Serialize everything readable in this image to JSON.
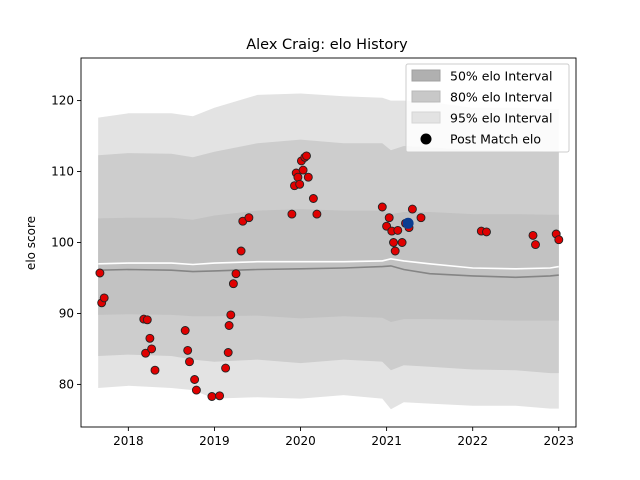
{
  "chart_data": {
    "type": "scatter",
    "title": "Alex Craig: elo History",
    "xlabel": "",
    "ylabel": "elo score",
    "xlim": [
      2017.45,
      2023.2
    ],
    "ylim": [
      74,
      126
    ],
    "x_ticks": [
      2018,
      2019,
      2020,
      2021,
      2022,
      2023
    ],
    "x_tick_labels": [
      "2018",
      "2019",
      "2020",
      "2021",
      "2022",
      "2023"
    ],
    "y_ticks": [
      80,
      90,
      100,
      110,
      120
    ],
    "y_tick_labels": [
      "80",
      "90",
      "100",
      "110",
      "120"
    ],
    "grid": false,
    "legend_position": "top-right",
    "legend": [
      {
        "label": "50% elo Interval",
        "kind": "band",
        "color": "#b0b0b0"
      },
      {
        "label": "80% elo Interval",
        "kind": "band",
        "color": "#c8c8c8"
      },
      {
        "label": "95% elo Interval",
        "kind": "band",
        "color": "#e3e3e3"
      },
      {
        "label": "Post Match elo",
        "kind": "marker",
        "color": "#000000"
      }
    ],
    "bands": {
      "x": [
        2017.65,
        2018.0,
        2018.5,
        2018.75,
        2019.0,
        2019.5,
        2020.0,
        2020.5,
        2020.95,
        2021.05,
        2021.2,
        2021.5,
        2022.0,
        2022.5,
        2022.9,
        2023.0
      ],
      "p95": {
        "lower": [
          79.5,
          79.8,
          79.5,
          79.2,
          78.0,
          78.2,
          78.0,
          78.5,
          78.0,
          76.5,
          77.5,
          77.3,
          77.0,
          77.0,
          76.6,
          76.6
        ],
        "upper": [
          117.6,
          118.2,
          118.2,
          117.8,
          119.0,
          120.8,
          121.0,
          120.6,
          120.4,
          120.0,
          120.0,
          119.8,
          119.0,
          119.0,
          118.8,
          118.8
        ]
      },
      "p80": {
        "lower": [
          84.0,
          84.2,
          84.0,
          83.5,
          83.2,
          83.5,
          83.0,
          83.5,
          83.2,
          82.0,
          82.7,
          82.5,
          82.1,
          82.0,
          81.6,
          81.6
        ],
        "upper": [
          112.3,
          112.6,
          112.5,
          112.0,
          112.8,
          114.0,
          114.5,
          114.0,
          114.0,
          113.0,
          113.6,
          113.4,
          113.0,
          113.0,
          112.8,
          112.8
        ]
      },
      "p50": {
        "lower": [
          89.8,
          89.9,
          89.8,
          89.6,
          89.6,
          89.7,
          89.3,
          89.6,
          89.4,
          88.8,
          89.2,
          89.2,
          89.1,
          89.0,
          89.0,
          89.0
        ],
        "upper": [
          103.4,
          103.5,
          103.5,
          103.2,
          103.8,
          104.5,
          104.7,
          104.5,
          104.5,
          104.0,
          104.3,
          104.3,
          104.0,
          104.0,
          103.9,
          103.9
        ]
      }
    },
    "median_line": {
      "x": [
        2017.65,
        2018.0,
        2018.5,
        2018.75,
        2019.0,
        2019.5,
        2020.0,
        2020.5,
        2020.95,
        2021.05,
        2021.2,
        2021.5,
        2022.0,
        2022.5,
        2022.9,
        2023.0
      ],
      "y": [
        97.0,
        97.1,
        97.1,
        96.9,
        97.1,
        97.3,
        97.3,
        97.3,
        97.4,
        97.7,
        97.4,
        97.0,
        96.4,
        96.3,
        96.4,
        96.6
      ]
    },
    "lower_line": {
      "x": [
        2017.65,
        2018.0,
        2018.5,
        2018.75,
        2019.0,
        2019.5,
        2020.0,
        2020.5,
        2020.95,
        2021.05,
        2021.2,
        2021.5,
        2022.0,
        2022.5,
        2022.9,
        2023.0
      ],
      "y": [
        96.1,
        96.2,
        96.1,
        95.9,
        96.0,
        96.2,
        96.3,
        96.4,
        96.6,
        96.7,
        96.2,
        95.6,
        95.3,
        95.1,
        95.3,
        95.4
      ]
    },
    "points": {
      "x": [
        2017.67,
        2017.69,
        2017.72,
        2018.18,
        2018.22,
        2018.2,
        2018.25,
        2018.27,
        2018.31,
        2018.66,
        2018.69,
        2018.71,
        2018.77,
        2018.79,
        2018.97,
        2019.06,
        2019.13,
        2019.16,
        2019.17,
        2019.19,
        2019.22,
        2019.25,
        2019.31,
        2019.33,
        2019.4,
        2019.9,
        2019.93,
        2019.95,
        2019.97,
        2019.99,
        2020.01,
        2020.03,
        2020.05,
        2020.07,
        2020.09,
        2020.15,
        2020.19,
        2020.95,
        2021.0,
        2021.03,
        2021.06,
        2021.08,
        2021.1,
        2021.13,
        2021.18,
        2021.22,
        2021.26,
        2021.3,
        2021.4,
        2022.1,
        2022.16,
        2022.7,
        2022.73,
        2022.97,
        2023.0
      ],
      "y": [
        95.7,
        91.5,
        92.2,
        89.2,
        89.1,
        84.4,
        86.5,
        85.0,
        82.0,
        87.6,
        84.8,
        83.2,
        80.7,
        79.2,
        78.3,
        78.4,
        82.3,
        84.5,
        88.3,
        89.8,
        94.2,
        95.6,
        98.8,
        103.0,
        103.5,
        104.0,
        108.0,
        109.8,
        109.2,
        108.2,
        111.5,
        110.2,
        112.0,
        112.2,
        109.2,
        106.2,
        104.0,
        105.0,
        102.3,
        103.5,
        101.6,
        100.0,
        98.8,
        101.7,
        100.0,
        102.7,
        102.1,
        104.7,
        103.5,
        101.6,
        101.5,
        101.0,
        99.7,
        101.2,
        100.4
      ],
      "highlight": {
        "x": 2021.25,
        "y": 102.7
      }
    }
  }
}
